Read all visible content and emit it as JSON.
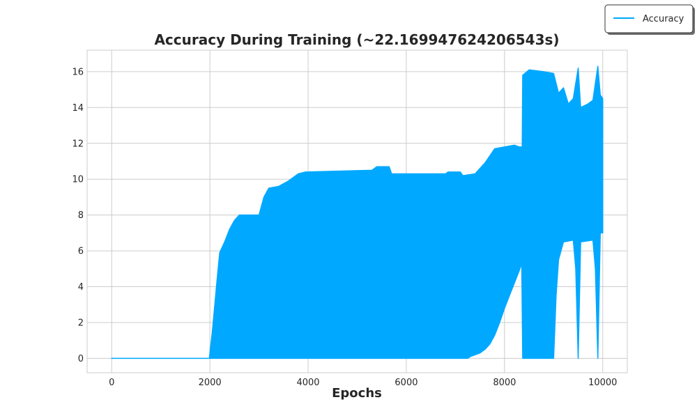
{
  "chart_data": {
    "type": "line",
    "title": "Accuracy During Training (~22.169947624206543s)",
    "xlabel": "Epochs",
    "ylabel": "",
    "xlim": [
      -500,
      10500
    ],
    "ylim": [
      -0.8,
      17.2
    ],
    "xticks": [
      0,
      2000,
      4000,
      6000,
      8000,
      10000
    ],
    "yticks": [
      0,
      2,
      4,
      6,
      8,
      10,
      12,
      14,
      16
    ],
    "grid": true,
    "legend_position": "top-right",
    "series": [
      {
        "name": "Accuracy",
        "color": "#00a8ff",
        "line_rendering": "rapidly oscillating; filled band between lower and upper envelope",
        "upper_envelope": [
          [
            0,
            0
          ],
          [
            1990,
            0
          ],
          [
            2000,
            0.3
          ],
          [
            2050,
            1.5
          ],
          [
            2100,
            3.0
          ],
          [
            2150,
            4.5
          ],
          [
            2200,
            5.9
          ],
          [
            2300,
            6.5
          ],
          [
            2400,
            7.2
          ],
          [
            2500,
            7.7
          ],
          [
            2600,
            8.0
          ],
          [
            3000,
            8.0
          ],
          [
            3100,
            9.0
          ],
          [
            3200,
            9.5
          ],
          [
            3400,
            9.6
          ],
          [
            3600,
            9.9
          ],
          [
            3800,
            10.3
          ],
          [
            3950,
            10.4
          ],
          [
            5300,
            10.5
          ],
          [
            5400,
            10.7
          ],
          [
            5650,
            10.7
          ],
          [
            5700,
            10.3
          ],
          [
            6800,
            10.3
          ],
          [
            6850,
            10.4
          ],
          [
            7100,
            10.4
          ],
          [
            7150,
            10.2
          ],
          [
            7400,
            10.3
          ],
          [
            7600,
            10.9
          ],
          [
            7800,
            11.7
          ],
          [
            8000,
            11.8
          ],
          [
            8200,
            11.9
          ],
          [
            8300,
            11.8
          ],
          [
            8360,
            11.8
          ],
          [
            8370,
            15.8
          ],
          [
            8500,
            16.1
          ],
          [
            8800,
            16.0
          ],
          [
            9000,
            15.9
          ],
          [
            9100,
            14.8
          ],
          [
            9200,
            15.1
          ],
          [
            9300,
            14.2
          ],
          [
            9400,
            14.5
          ],
          [
            9500,
            16.2
          ],
          [
            9550,
            14.0
          ],
          [
            9700,
            14.2
          ],
          [
            9800,
            14.4
          ],
          [
            9900,
            16.3
          ],
          [
            9950,
            14.7
          ],
          [
            10000,
            14.5
          ]
        ],
        "lower_envelope": [
          [
            0,
            0
          ],
          [
            7250,
            0
          ],
          [
            7300,
            0.1
          ],
          [
            7400,
            0.2
          ],
          [
            7500,
            0.3
          ],
          [
            7600,
            0.5
          ],
          [
            7700,
            0.8
          ],
          [
            7800,
            1.3
          ],
          [
            7900,
            2.0
          ],
          [
            8000,
            2.8
          ],
          [
            8100,
            3.5
          ],
          [
            8200,
            4.2
          ],
          [
            8300,
            4.9
          ],
          [
            8350,
            5.3
          ],
          [
            8370,
            0
          ],
          [
            9000,
            0
          ],
          [
            9050,
            3.5
          ],
          [
            9100,
            5.5
          ],
          [
            9200,
            6.5
          ],
          [
            9400,
            6.6
          ],
          [
            9450,
            5.0
          ],
          [
            9500,
            0
          ],
          [
            9550,
            6.5
          ],
          [
            9800,
            6.6
          ],
          [
            9850,
            5.0
          ],
          [
            9900,
            0
          ],
          [
            9950,
            7.0
          ],
          [
            10000,
            7.0
          ]
        ]
      }
    ]
  }
}
